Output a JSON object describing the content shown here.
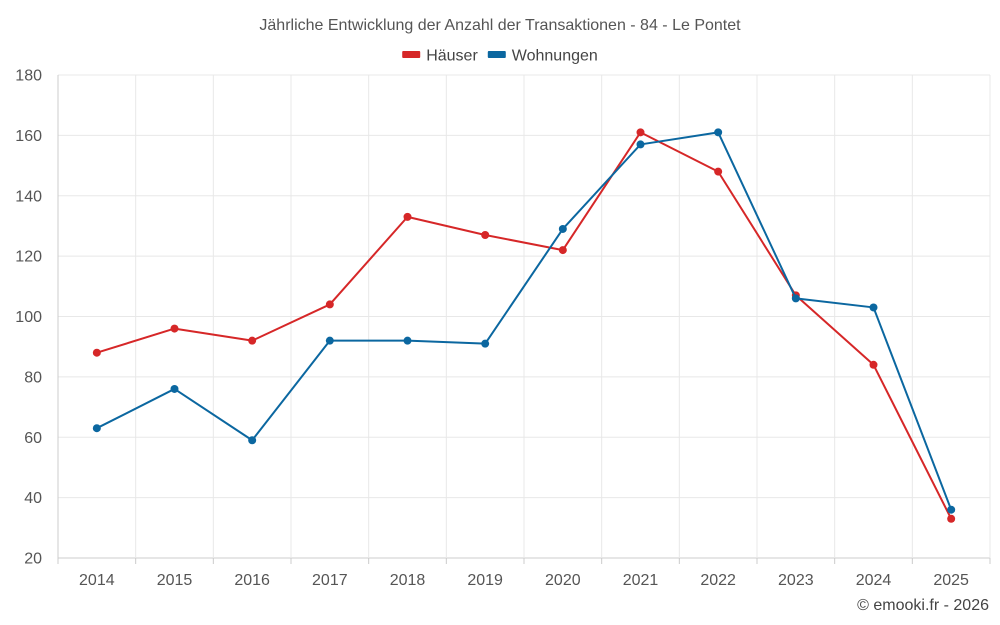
{
  "chart_data": {
    "type": "line",
    "title": "Jährliche Entwicklung der Anzahl der Transaktionen - 84 - Le Pontet",
    "categories": [
      "2014",
      "2015",
      "2016",
      "2017",
      "2018",
      "2019",
      "2020",
      "2021",
      "2022",
      "2023",
      "2024",
      "2025"
    ],
    "series": [
      {
        "name": "Häuser",
        "color": "#d62728",
        "values": [
          88,
          96,
          92,
          104,
          133,
          127,
          122,
          161,
          148,
          107,
          84,
          33
        ]
      },
      {
        "name": "Wohnungen",
        "color": "#0b67a0",
        "values": [
          63,
          76,
          59,
          92,
          92,
          91,
          129,
          157,
          161,
          106,
          103,
          36
        ]
      }
    ],
    "ylim": [
      20,
      180
    ],
    "yticks": [
      20,
      40,
      60,
      80,
      100,
      120,
      140,
      160,
      180
    ],
    "xlabel": "",
    "ylabel": "",
    "grid": true,
    "legend_position": "top-center"
  },
  "credit": "© emooki.fr - 2026"
}
